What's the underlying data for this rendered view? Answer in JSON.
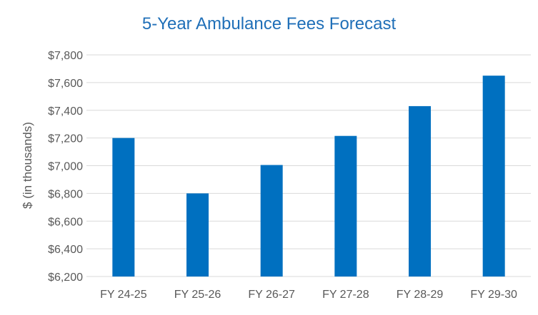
{
  "chart_data": {
    "type": "bar",
    "title": "5-Year Ambulance Fees Forecast",
    "xlabel": "",
    "ylabel": "$ (in thousands)",
    "categories": [
      "FY 24-25",
      "FY 25-26",
      "FY 26-27",
      "FY 27-28",
      "FY 28-29",
      "FY 29-30"
    ],
    "values": [
      7200,
      6800,
      7005,
      7215,
      7430,
      7650
    ],
    "ylim": [
      6200,
      7800
    ],
    "yticks": [
      6200,
      6400,
      6600,
      6800,
      7000,
      7200,
      7400,
      7600,
      7800
    ],
    "ytick_labels": [
      "$6,200",
      "$6,400",
      "$6,600",
      "$6,800",
      "$7,000",
      "$7,200",
      "$7,400",
      "$7,600",
      "$7,800"
    ],
    "grid": true,
    "legend": "none",
    "colors": {
      "bar": "#0070c0",
      "grid": "#d9d9d9",
      "title": "#1f6fb8",
      "text": "#595959"
    }
  }
}
